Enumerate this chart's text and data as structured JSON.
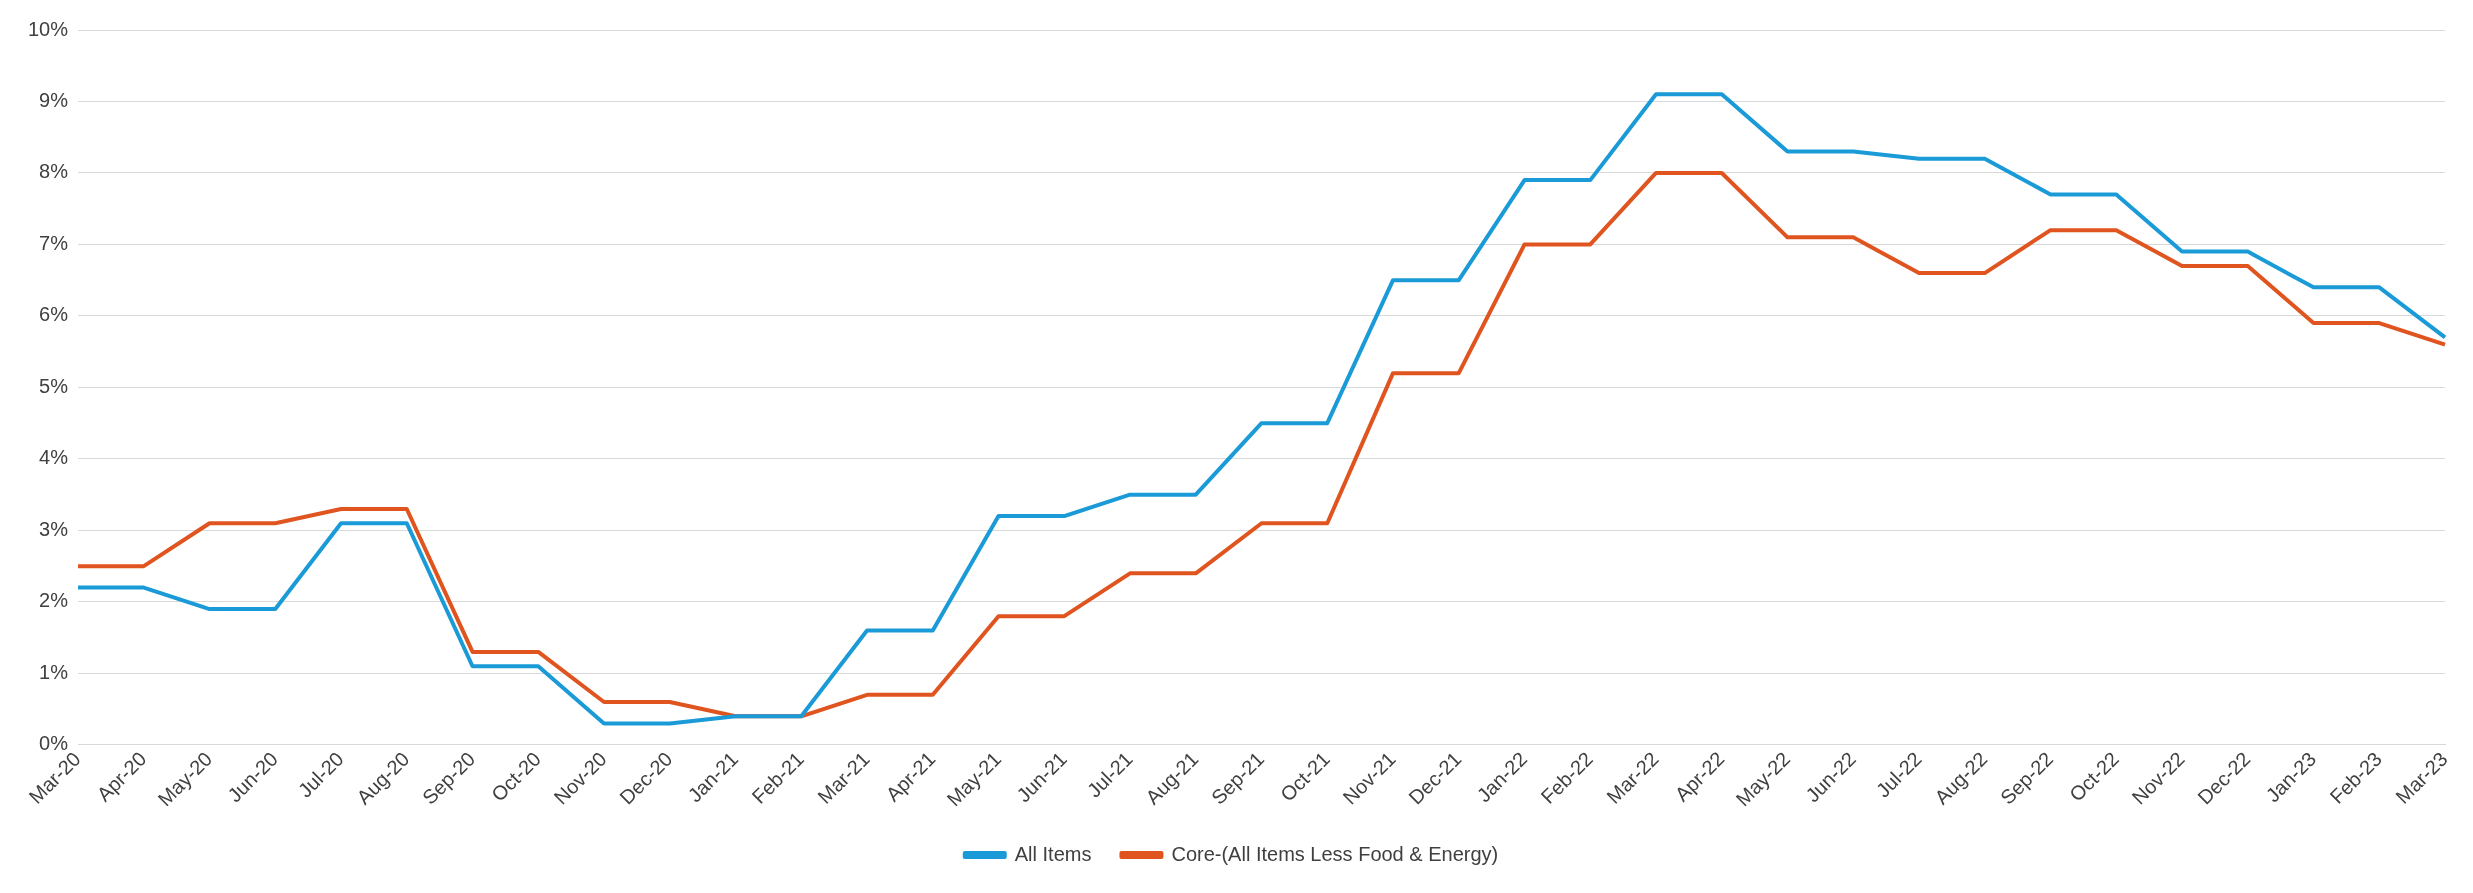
{
  "chart_data": {
    "type": "line",
    "categories": [
      "Mar-20",
      "Apr-20",
      "May-20",
      "Jun-20",
      "Jul-20",
      "Aug-20",
      "Sep-20",
      "Oct-20",
      "Nov-20",
      "Dec-20",
      "Jan-21",
      "Feb-21",
      "Mar-21",
      "Apr-21",
      "May-21",
      "Jun-21",
      "Jul-21",
      "Aug-21",
      "Sep-21",
      "Oct-21",
      "Nov-21",
      "Dec-21",
      "Jan-22",
      "Feb-22",
      "Mar-22",
      "Apr-22",
      "May-22",
      "Jun-22",
      "Jul-22",
      "Aug-22",
      "Sep-22",
      "Oct-22",
      "Nov-22",
      "Dec-22",
      "Jan-23",
      "Feb-23",
      "Mar-23"
    ],
    "series": [
      {
        "name": "All Items",
        "color": "#1a9bd7",
        "values": [
          2.2,
          2.2,
          1.9,
          1.9,
          3.1,
          3.1,
          1.1,
          1.1,
          0.3,
          0.3,
          0.4,
          0.4,
          1.6,
          1.6,
          3.2,
          3.2,
          3.5,
          3.5,
          4.5,
          4.5,
          6.5,
          6.5,
          7.9,
          7.9,
          9.1,
          9.1,
          8.3,
          8.3,
          8.2,
          8.2,
          7.7,
          7.7,
          6.9,
          6.9,
          6.4,
          6.4,
          5.7
        ]
      },
      {
        "name": "Core-(All Items Less Food & Energy)",
        "color": "#e0541f",
        "values": [
          2.5,
          2.5,
          3.1,
          3.1,
          3.3,
          3.3,
          1.3,
          1.3,
          0.6,
          0.6,
          0.4,
          0.4,
          0.7,
          0.7,
          1.8,
          1.8,
          2.4,
          2.4,
          3.1,
          3.1,
          5.2,
          5.2,
          7.0,
          7.0,
          8.0,
          8.0,
          7.1,
          7.1,
          6.6,
          6.6,
          7.2,
          7.2,
          6.7,
          6.7,
          5.9,
          5.9,
          5.6
        ]
      }
    ],
    "ylim": [
      0,
      10
    ],
    "yticks": [
      {
        "value": 0,
        "label": "0%"
      },
      {
        "value": 1,
        "label": "1%"
      },
      {
        "value": 2,
        "label": "2%"
      },
      {
        "value": 3,
        "label": "3%"
      },
      {
        "value": 4,
        "label": "4%"
      },
      {
        "value": 5,
        "label": "5%"
      },
      {
        "value": 6,
        "label": "6%"
      },
      {
        "value": 7,
        "label": "7%"
      },
      {
        "value": 8,
        "label": "8%"
      },
      {
        "value": 9,
        "label": "9%"
      },
      {
        "value": 10,
        "label": "10%"
      }
    ],
    "grid": "y",
    "legend": "bottom",
    "marker": "none",
    "line_style": "solid"
  }
}
